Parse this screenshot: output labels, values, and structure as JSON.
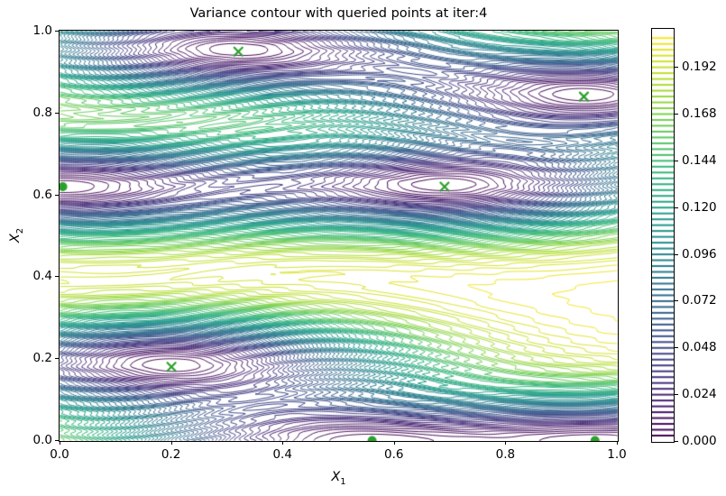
{
  "figure": {
    "title": "Variance contour with queried points at iter:4",
    "background": "#ffffff"
  },
  "axes": {
    "xlabel": {
      "var": "X",
      "sub": "1"
    },
    "ylabel": {
      "var": "X",
      "sub": "2"
    },
    "x_ticks": [
      {
        "v": 0.0,
        "label": "0.0"
      },
      {
        "v": 0.2,
        "label": "0.2"
      },
      {
        "v": 0.4,
        "label": "0.4"
      },
      {
        "v": 0.6,
        "label": "0.6"
      },
      {
        "v": 0.8,
        "label": "0.8"
      },
      {
        "v": 1.0,
        "label": "1.0"
      }
    ],
    "y_ticks": [
      {
        "v": 0.0,
        "label": "0.0"
      },
      {
        "v": 0.2,
        "label": "0.2"
      },
      {
        "v": 0.4,
        "label": "0.4"
      },
      {
        "v": 0.6,
        "label": "0.6"
      },
      {
        "v": 0.8,
        "label": "0.8"
      },
      {
        "v": 1.0,
        "label": "1.0"
      }
    ]
  },
  "colorbar": {
    "vmin": 0.0,
    "vmax": 0.2115,
    "ticks": [
      {
        "v": 0.0,
        "label": "0.000"
      },
      {
        "v": 0.024,
        "label": "0.024"
      },
      {
        "v": 0.048,
        "label": "0.048"
      },
      {
        "v": 0.072,
        "label": "0.072"
      },
      {
        "v": 0.096,
        "label": "0.096"
      },
      {
        "v": 0.12,
        "label": "0.120"
      },
      {
        "v": 0.144,
        "label": "0.144"
      },
      {
        "v": 0.168,
        "label": "0.168"
      },
      {
        "v": 0.192,
        "label": "0.192"
      }
    ]
  },
  "chart_data": {
    "type": "contour",
    "title": "Variance contour with queried points at iter:4",
    "xlabel": "X_1",
    "ylabel": "X_2",
    "xlim": [
      0.0,
      1.0
    ],
    "ylim": [
      0.0,
      1.0
    ],
    "grid": false,
    "colormap": "viridis",
    "levels": {
      "min": 0.003,
      "max": 0.2085,
      "step": 0.003
    },
    "colorbar_range": [
      0.0,
      0.2115
    ],
    "colorbar_tick_step": 0.024,
    "marker_color": "#2ca02c",
    "queried_points_x_markers": [
      [
        0.32,
        0.95
      ],
      [
        0.94,
        0.84
      ],
      [
        0.69,
        0.62
      ],
      [
        0.2,
        0.18
      ]
    ],
    "initial_points_dot_markers": [
      [
        0.005,
        0.62
      ],
      [
        0.56,
        0.0
      ],
      [
        0.96,
        0.0
      ]
    ],
    "surface_model": {
      "type": "gp_posterior_variance",
      "prior_variance": 0.21,
      "lengthscale_x1": 0.42,
      "lengthscale_x2": 0.12,
      "noise": 1e-08,
      "support_points": [
        [
          0.32,
          0.955
        ],
        [
          0.94,
          0.845
        ],
        [
          0.69,
          0.625
        ],
        [
          0.2,
          0.185
        ],
        [
          0.005,
          0.62
        ],
        [
          0.56,
          0.0
        ],
        [
          0.96,
          0.0
        ]
      ],
      "ripple": {
        "amplitude": 0.0036,
        "freq_x2": 42,
        "phase_mod": 8,
        "freq_x1": 1.2,
        "phase0": 1.0
      }
    },
    "viridis_anchors": [
      "#440154",
      "#482878",
      "#3e4989",
      "#31688e",
      "#26828e",
      "#1f9e89",
      "#35b779",
      "#6ece58",
      "#b5de2b",
      "#fde725"
    ]
  }
}
